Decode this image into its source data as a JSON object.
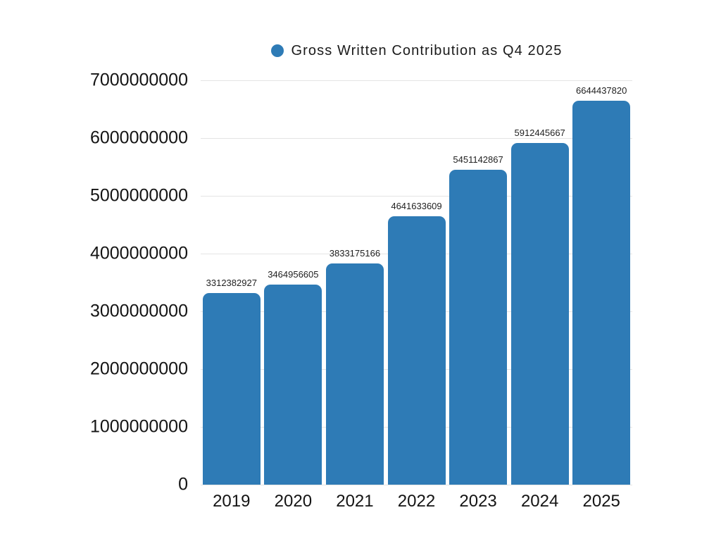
{
  "chart_data": {
    "type": "bar",
    "title": "",
    "legend": {
      "label": "Gross Written Contribution as Q4 2025",
      "marker": "circle",
      "marker_color": "#2E7BB6",
      "position": "top-center"
    },
    "categories": [
      "2019",
      "2020",
      "2021",
      "2022",
      "2023",
      "2024",
      "2025"
    ],
    "values": [
      3312382927,
      3464956605,
      3833175166,
      4641633609,
      5451142867,
      5912445667,
      6644437820
    ],
    "bar_labels": [
      "3312382927",
      "3464956605",
      "3833175166",
      "4641633609",
      "5451142867",
      "5912445667",
      "6644437820"
    ],
    "xlabel": "",
    "ylabel": "",
    "ylim": [
      0,
      7000000000
    ],
    "ytick_labels": [
      "0",
      "1000000000",
      "2000000000",
      "3000000000",
      "4000000000",
      "5000000000",
      "6000000000",
      "7000000000"
    ],
    "grid": true,
    "legend_position": "top",
    "colors": {
      "bar": "#2E7BB6",
      "gridline": "#e4e4e4",
      "axis_text": "#141414",
      "bar_label_text": "#1f1f1f",
      "background": "#ffffff"
    }
  }
}
